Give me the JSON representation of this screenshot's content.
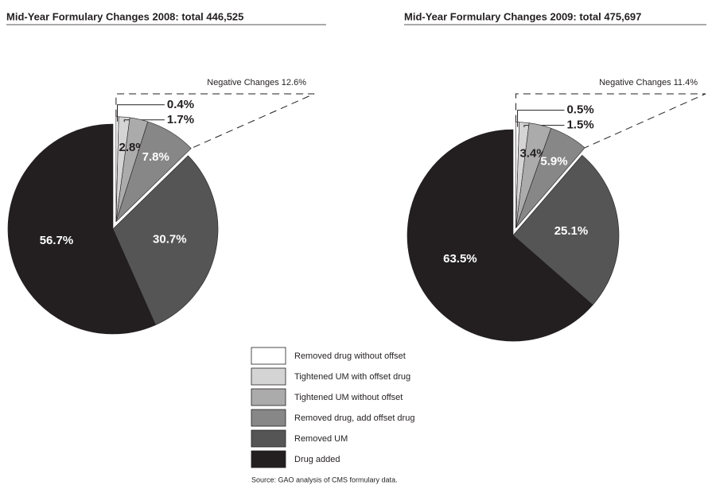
{
  "chart_data": [
    {
      "type": "pie",
      "title": "Mid-Year Formulary Changes 2008: total 446,525",
      "annotation": "Negative Changes 12.6%",
      "values": [
        0.4,
        1.7,
        2.8,
        7.8,
        30.7,
        56.7
      ],
      "value_labels": [
        "0.4%",
        "1.7%",
        "2.8%",
        "7.8%",
        "30.7%",
        "56.7%"
      ]
    },
    {
      "type": "pie",
      "title": "Mid-Year Formulary Changes 2009: total 475,697",
      "annotation": "Negative Changes 11.4%",
      "values": [
        0.5,
        1.5,
        3.4,
        5.9,
        25.1,
        63.5
      ],
      "value_labels": [
        "0.5%",
        "1.5%",
        "3.4%",
        "5.9%",
        "25.1%",
        "63.5%"
      ]
    }
  ],
  "legend": {
    "labels": [
      "Removed drug without offset",
      "Tightened UM with offset drug",
      "Tightened UM without offset",
      "Removed drug, add offset drug",
      "Removed UM",
      "Drug added"
    ],
    "colors": [
      "#ffffff",
      "#d4d4d4",
      "#ababab",
      "#878787",
      "#555555",
      "#231f20"
    ]
  },
  "source": "Source: GAO analysis of CMS formulary data."
}
